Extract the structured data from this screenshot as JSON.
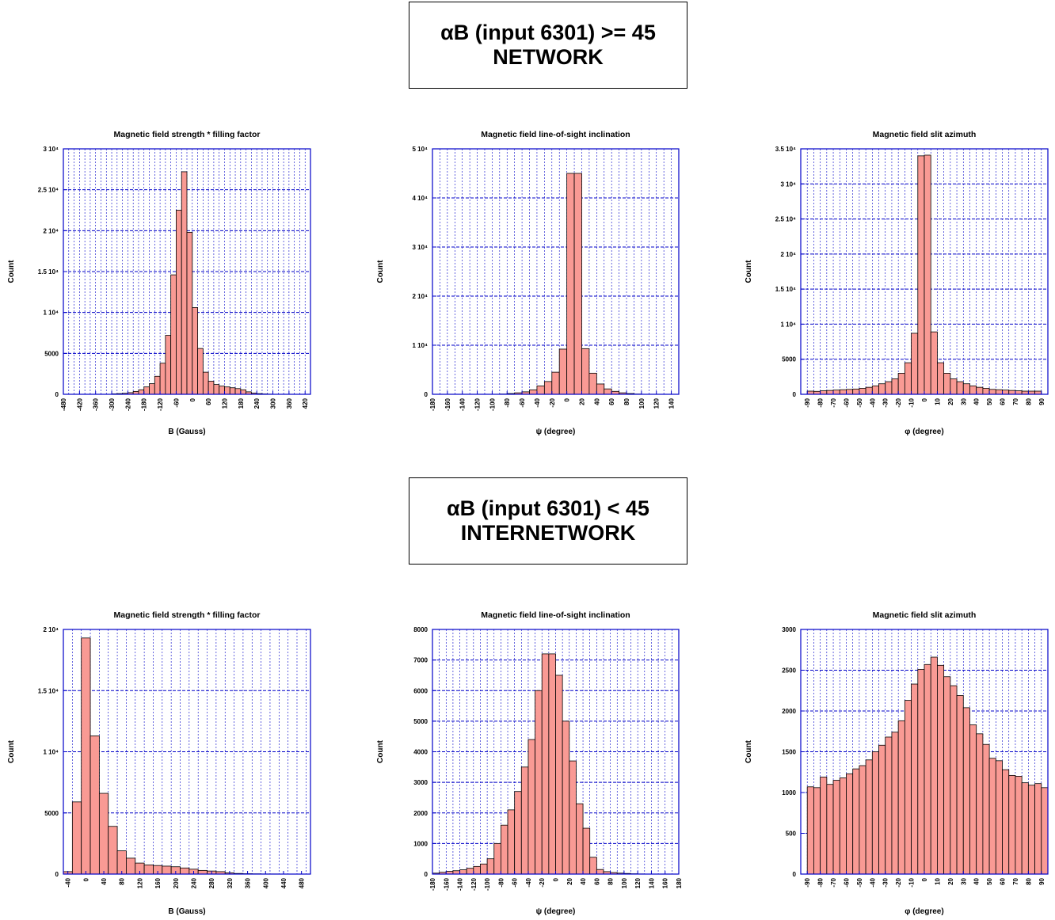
{
  "headers": {
    "network": {
      "line1": "αB (input 6301) >= 45",
      "line2": "NETWORK"
    },
    "internetwork": {
      "line1": "αB (input 6301) < 45",
      "line2": "INTERNETWORK"
    }
  },
  "colors": {
    "bar_fill": "#f99a94",
    "bar_edge": "#000000",
    "axis": "#0000c8",
    "grid": "#0000c8"
  },
  "chart_data": [
    {
      "type": "bar",
      "title": "Magnetic field strength * filling factor",
      "xlabel": "B (Gauss)",
      "ylabel": "Count",
      "xlim": [
        -480,
        440
      ],
      "ylim": [
        0,
        30000
      ],
      "bin_width": 20,
      "bin_start": -480,
      "values": [
        0,
        0,
        0,
        0,
        0,
        0,
        0,
        0,
        0,
        50,
        80,
        120,
        200,
        350,
        550,
        900,
        1300,
        2200,
        3800,
        7200,
        14600,
        22500,
        27200,
        19800,
        10600,
        5600,
        2700,
        1600,
        1200,
        1000,
        900,
        800,
        700,
        550,
        300,
        150,
        80,
        40,
        20,
        10,
        0,
        0,
        0,
        0,
        0,
        0
      ],
      "xticks": [
        -480,
        -420,
        -360,
        -300,
        -240,
        -180,
        -120,
        -60,
        0,
        60,
        120,
        180,
        240,
        300,
        360,
        420
      ],
      "yticks": [
        {
          "v": 0,
          "l": "0"
        },
        {
          "v": 5000,
          "l": "5000"
        },
        {
          "v": 10000,
          "l": "1 10⁴"
        },
        {
          "v": 15000,
          "l": "1.5 10⁴"
        },
        {
          "v": 20000,
          "l": "2 10⁴"
        },
        {
          "v": 25000,
          "l": "2.5 10⁴"
        },
        {
          "v": 30000,
          "l": "3 10⁴"
        }
      ],
      "grid": true
    },
    {
      "type": "bar",
      "title": "Magnetic field line-of-sight inclination",
      "xlabel": "ψ (degree)",
      "ylabel": "Count",
      "xlim": [
        -180,
        150
      ],
      "ylim": [
        0,
        50000
      ],
      "bin_width": 10,
      "bin_start": -180,
      "values": [
        0,
        0,
        0,
        0,
        0,
        0,
        0,
        0,
        0,
        50,
        150,
        300,
        500,
        900,
        1700,
        2600,
        4500,
        9200,
        45000,
        45000,
        9300,
        4300,
        2100,
        1100,
        600,
        300,
        150,
        50,
        0,
        0,
        0,
        0,
        0
      ],
      "xticks": [
        -180,
        -160,
        -140,
        -120,
        -100,
        -80,
        -60,
        -40,
        -20,
        0,
        20,
        40,
        60,
        80,
        100,
        120,
        140
      ],
      "yticks": [
        {
          "v": 0,
          "l": "0"
        },
        {
          "v": 10000,
          "l": "1 10⁴"
        },
        {
          "v": 20000,
          "l": "2 10⁴"
        },
        {
          "v": 30000,
          "l": "3 10⁴"
        },
        {
          "v": 40000,
          "l": "4 10⁴"
        },
        {
          "v": 50000,
          "l": "5 10⁴"
        }
      ],
      "grid": true
    },
    {
      "type": "bar",
      "title": "Magnetic field slit azimuth",
      "xlabel": "φ (degree)",
      "ylabel": "Count",
      "xlim": [
        -95,
        95
      ],
      "ylim": [
        0,
        35000
      ],
      "bin_width": 5,
      "bin_start": -95,
      "values": [
        0,
        450,
        420,
        500,
        550,
        600,
        650,
        700,
        750,
        850,
        1000,
        1200,
        1500,
        1800,
        2200,
        3000,
        4500,
        8700,
        34000,
        34100,
        8900,
        4500,
        3000,
        2200,
        1800,
        1500,
        1200,
        1000,
        850,
        700,
        650,
        600,
        550,
        500,
        450,
        450,
        450,
        0
      ],
      "xticks": [
        -90,
        -80,
        -70,
        -60,
        -50,
        -40,
        -30,
        -20,
        -10,
        0,
        10,
        20,
        30,
        40,
        50,
        60,
        70,
        80,
        90
      ],
      "yticks": [
        {
          "v": 0,
          "l": "0"
        },
        {
          "v": 5000,
          "l": "5000"
        },
        {
          "v": 10000,
          "l": "1 10⁴"
        },
        {
          "v": 15000,
          "l": "1.5 10⁴"
        },
        {
          "v": 20000,
          "l": "2 10⁴"
        },
        {
          "v": 25000,
          "l": "2.5 10⁴"
        },
        {
          "v": 30000,
          "l": "3 10⁴"
        },
        {
          "v": 35000,
          "l": "3.5 10⁴"
        }
      ],
      "grid": true
    },
    {
      "type": "bar",
      "title": "Magnetic field strength * filling factor",
      "xlabel": "B (Gauss)",
      "ylabel": "Count",
      "xlim": [
        -50,
        500
      ],
      "ylim": [
        0,
        20000
      ],
      "bin_width": 20,
      "bin_start": -50,
      "values": [
        200,
        5900,
        19300,
        11300,
        6600,
        3900,
        1900,
        1300,
        900,
        750,
        700,
        650,
        600,
        500,
        400,
        300,
        250,
        200,
        100,
        50,
        30,
        20,
        10,
        10,
        5,
        5,
        0,
        0
      ],
      "xticks": [
        -40,
        0,
        40,
        80,
        120,
        160,
        200,
        240,
        280,
        320,
        360,
        400,
        440,
        480
      ],
      "yticks": [
        {
          "v": 0,
          "l": "0"
        },
        {
          "v": 5000,
          "l": "5000"
        },
        {
          "v": 10000,
          "l": "1 10⁴"
        },
        {
          "v": 15000,
          "l": "1.5 10⁴"
        },
        {
          "v": 20000,
          "l": "2 10⁴"
        }
      ],
      "grid": true
    },
    {
      "type": "bar",
      "title": "Magnetic field line-of-sight inclination",
      "xlabel": "ψ (degree)",
      "ylabel": "Count",
      "xlim": [
        -180,
        180
      ],
      "ylim": [
        0,
        8000
      ],
      "bin_width": 10,
      "bin_start": -180,
      "values": [
        30,
        60,
        90,
        110,
        140,
        190,
        250,
        330,
        500,
        1000,
        1600,
        2100,
        2700,
        3500,
        4400,
        6000,
        7200,
        7200,
        6500,
        5000,
        3700,
        2300,
        1500,
        550,
        150,
        80,
        50,
        30,
        20,
        10,
        5,
        0,
        0,
        0,
        0,
        0
      ],
      "xticks": [
        -180,
        -160,
        -140,
        -120,
        -100,
        -80,
        -60,
        -40,
        -20,
        0,
        20,
        40,
        60,
        80,
        100,
        120,
        140,
        160,
        180
      ],
      "yticks": [
        {
          "v": 0,
          "l": "0"
        },
        {
          "v": 1000,
          "l": "1000"
        },
        {
          "v": 2000,
          "l": "2000"
        },
        {
          "v": 3000,
          "l": "3000"
        },
        {
          "v": 4000,
          "l": "4000"
        },
        {
          "v": 5000,
          "l": "5000"
        },
        {
          "v": 6000,
          "l": "6000"
        },
        {
          "v": 7000,
          "l": "7000"
        },
        {
          "v": 8000,
          "l": "8000"
        }
      ],
      "grid": true
    },
    {
      "type": "bar",
      "title": "Magnetic field slit azimuth",
      "xlabel": "φ (degree)",
      "ylabel": "Count",
      "xlim": [
        -95,
        95
      ],
      "ylim": [
        0,
        3000
      ],
      "bin_width": 5,
      "bin_start": -95,
      "values": [
        0,
        1070,
        1060,
        1190,
        1100,
        1150,
        1180,
        1230,
        1290,
        1330,
        1400,
        1500,
        1580,
        1680,
        1740,
        1880,
        2130,
        2330,
        2510,
        2570,
        2660,
        2560,
        2420,
        2310,
        2190,
        2040,
        1830,
        1720,
        1590,
        1420,
        1390,
        1280,
        1210,
        1200,
        1120,
        1090,
        1110,
        1060,
        1040,
        0
      ],
      "xticks": [
        -90,
        -80,
        -70,
        -60,
        -50,
        -40,
        -30,
        -20,
        -10,
        0,
        10,
        20,
        30,
        40,
        50,
        60,
        70,
        80,
        90
      ],
      "yticks": [
        {
          "v": 0,
          "l": "0"
        },
        {
          "v": 500,
          "l": "500"
        },
        {
          "v": 1000,
          "l": "1000"
        },
        {
          "v": 1500,
          "l": "1500"
        },
        {
          "v": 2000,
          "l": "2000"
        },
        {
          "v": 2500,
          "l": "2500"
        },
        {
          "v": 3000,
          "l": "3000"
        }
      ],
      "grid": true
    }
  ]
}
